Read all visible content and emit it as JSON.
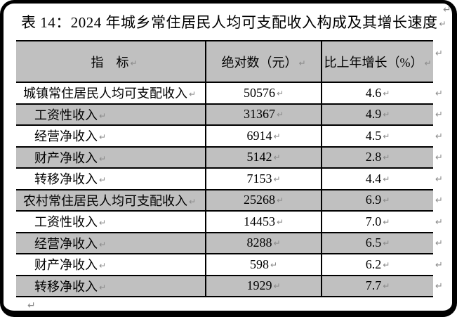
{
  "title": "表 14：2024 年城乡常住居民人均可支配收入构成及其增长速度",
  "marks": {
    "pilcrow": "↵"
  },
  "colors": {
    "frame": "#000000",
    "background": "#ffffff",
    "shaded_row_bg": "#c0c0c0",
    "table_border": "#000000",
    "pilcrow": "#8a8a8a"
  },
  "table": {
    "columns": {
      "indicator": "指　标",
      "absolute": "绝对数（元）",
      "growth": "比上年增长（%）"
    },
    "rows": [
      {
        "indicator": "城镇常住居民人均可支配收入",
        "absolute": "50576",
        "growth": "4.6"
      },
      {
        "indicator": "工资性收入",
        "absolute": "31367",
        "growth": "4.9"
      },
      {
        "indicator": "经营净收入",
        "absolute": "6914",
        "growth": "4.5"
      },
      {
        "indicator": "财产净收入",
        "absolute": "5142",
        "growth": "2.8"
      },
      {
        "indicator": "转移净收入",
        "absolute": "7153",
        "growth": "4.4"
      },
      {
        "indicator": "农村常住居民人均可支配收入",
        "absolute": "25268",
        "growth": "6.9"
      },
      {
        "indicator": "工资性收入",
        "absolute": "14453",
        "growth": "7.0"
      },
      {
        "indicator": "经营净收入",
        "absolute": "8288",
        "growth": "6.5"
      },
      {
        "indicator": "财产净收入",
        "absolute": "598",
        "growth": "6.2"
      },
      {
        "indicator": "转移净收入",
        "absolute": "1929",
        "growth": "7.7"
      }
    ]
  }
}
